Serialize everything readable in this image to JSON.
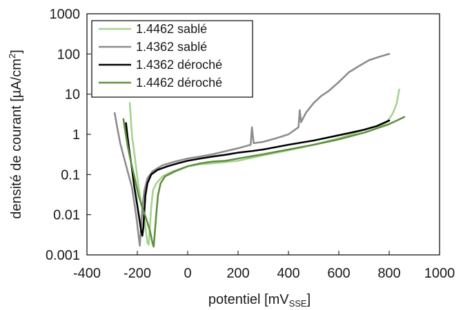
{
  "chart_data": {
    "type": "line",
    "title": "",
    "xlabel": "potentiel [mV",
    "xlabel_sub": "SSE",
    "xlabel_end": "]",
    "ylabel": "densité de courant [µA/cm",
    "ylabel_sup": "2",
    "ylabel_end": "]",
    "xlim": [
      -400,
      1000
    ],
    "ylim": [
      0.001,
      1000
    ],
    "yscale": "log",
    "grid": false,
    "legend_position": "top-left",
    "x_ticks": [
      -400,
      -200,
      0,
      200,
      400,
      600,
      800,
      1000
    ],
    "x_tick_labels": [
      "-400",
      "-200",
      "0",
      "200",
      "400",
      "600",
      "800",
      "1000"
    ],
    "y_ticks": [
      0.001,
      0.01,
      0.1,
      1,
      10,
      100,
      1000
    ],
    "y_tick_labels": [
      "0.001",
      "0.01",
      "0.1",
      "1",
      "10",
      "100",
      "1000"
    ],
    "series": [
      {
        "name": "1.4462 sablé",
        "color": "#a5d38e",
        "points": [
          [
            -230,
            6
          ],
          [
            -225,
            2
          ],
          [
            -220,
            0.8
          ],
          [
            -212,
            0.35
          ],
          [
            -205,
            0.15
          ],
          [
            -195,
            0.05
          ],
          [
            -185,
            0.02
          ],
          [
            -175,
            0.01
          ],
          [
            -168,
            0.005
          ],
          [
            -160,
            0.002
          ],
          [
            -155,
            0.0018
          ],
          [
            -150,
            0.005
          ],
          [
            -145,
            0.015
          ],
          [
            -138,
            0.04
          ],
          [
            -125,
            0.06
          ],
          [
            -100,
            0.09
          ],
          [
            -60,
            0.12
          ],
          [
            0,
            0.16
          ],
          [
            50,
            0.18
          ],
          [
            100,
            0.19
          ],
          [
            200,
            0.22
          ],
          [
            300,
            0.3
          ],
          [
            400,
            0.4
          ],
          [
            500,
            0.55
          ],
          [
            600,
            0.8
          ],
          [
            650,
            1.0
          ],
          [
            700,
            1.3
          ],
          [
            730,
            1.5
          ],
          [
            760,
            1.6
          ],
          [
            790,
            2.0
          ],
          [
            810,
            3
          ],
          [
            820,
            4
          ],
          [
            830,
            6
          ],
          [
            835,
            9
          ],
          [
            840,
            13
          ]
        ]
      },
      {
        "name": "1.4362 sablé",
        "color": "#8c8c8c",
        "points": [
          [
            -290,
            3.4
          ],
          [
            -280,
            1.5
          ],
          [
            -268,
            0.6
          ],
          [
            -252,
            0.25
          ],
          [
            -235,
            0.1
          ],
          [
            -222,
            0.05
          ],
          [
            -212,
            0.02
          ],
          [
            -203,
            0.008
          ],
          [
            -195,
            0.003
          ],
          [
            -190,
            0.0017
          ],
          [
            -185,
            0.005
          ],
          [
            -180,
            0.015
          ],
          [
            -172,
            0.04
          ],
          [
            -160,
            0.08
          ],
          [
            -140,
            0.12
          ],
          [
            -100,
            0.17
          ],
          [
            -50,
            0.21
          ],
          [
            0,
            0.25
          ],
          [
            50,
            0.28
          ],
          [
            100,
            0.32
          ],
          [
            150,
            0.38
          ],
          [
            200,
            0.45
          ],
          [
            250,
            0.55
          ],
          [
            255,
            1.5
          ],
          [
            262,
            0.6
          ],
          [
            300,
            0.65
          ],
          [
            350,
            0.8
          ],
          [
            400,
            1.0
          ],
          [
            440,
            1.5
          ],
          [
            445,
            4.0
          ],
          [
            450,
            2.0
          ],
          [
            470,
            3.5
          ],
          [
            500,
            6
          ],
          [
            530,
            9
          ],
          [
            560,
            12
          ],
          [
            600,
            20
          ],
          [
            640,
            35
          ],
          [
            680,
            50
          ],
          [
            720,
            70
          ],
          [
            760,
            85
          ],
          [
            800,
            100
          ]
        ]
      },
      {
        "name": "1.4362 déroché",
        "color": "#000000",
        "points": [
          [
            -245,
            1.9
          ],
          [
            -240,
            1.0
          ],
          [
            -232,
            0.4
          ],
          [
            -222,
            0.15
          ],
          [
            -212,
            0.05
          ],
          [
            -202,
            0.02
          ],
          [
            -192,
            0.008
          ],
          [
            -185,
            0.004
          ],
          [
            -180,
            0.003
          ],
          [
            -176,
            0.005
          ],
          [
            -172,
            0.012
          ],
          [
            -168,
            0.03
          ],
          [
            -160,
            0.06
          ],
          [
            -145,
            0.1
          ],
          [
            -120,
            0.13
          ],
          [
            -80,
            0.16
          ],
          [
            -40,
            0.19
          ],
          [
            0,
            0.22
          ],
          [
            50,
            0.25
          ],
          [
            100,
            0.28
          ],
          [
            150,
            0.31
          ],
          [
            200,
            0.35
          ],
          [
            250,
            0.38
          ],
          [
            300,
            0.42
          ],
          [
            400,
            0.55
          ],
          [
            500,
            0.7
          ],
          [
            600,
            0.95
          ],
          [
            700,
            1.3
          ],
          [
            750,
            1.6
          ],
          [
            800,
            2.2
          ]
        ]
      },
      {
        "name": "1.4462 déroché",
        "color": "#5f8f3e",
        "points": [
          [
            -255,
            2.4
          ],
          [
            -248,
            1.2
          ],
          [
            -238,
            0.5
          ],
          [
            -225,
            0.2
          ],
          [
            -210,
            0.08
          ],
          [
            -195,
            0.03
          ],
          [
            -180,
            0.015
          ],
          [
            -165,
            0.008
          ],
          [
            -150,
            0.004
          ],
          [
            -140,
            0.002
          ],
          [
            -135,
            0.0016
          ],
          [
            -130,
            0.004
          ],
          [
            -125,
            0.01
          ],
          [
            -118,
            0.03
          ],
          [
            -108,
            0.06
          ],
          [
            -90,
            0.09
          ],
          [
            -50,
            0.12
          ],
          [
            0,
            0.16
          ],
          [
            50,
            0.19
          ],
          [
            100,
            0.21
          ],
          [
            150,
            0.22
          ],
          [
            200,
            0.25
          ],
          [
            300,
            0.32
          ],
          [
            400,
            0.42
          ],
          [
            500,
            0.55
          ],
          [
            600,
            0.75
          ],
          [
            700,
            1.1
          ],
          [
            750,
            1.4
          ],
          [
            800,
            1.8
          ],
          [
            830,
            2.2
          ],
          [
            860,
            2.7
          ]
        ]
      }
    ]
  }
}
